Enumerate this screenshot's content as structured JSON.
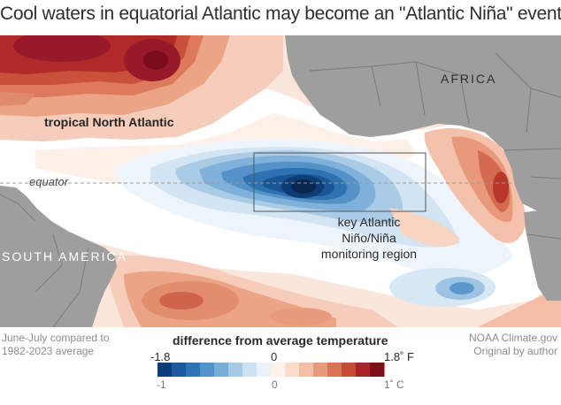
{
  "title": "Cool waters in equatorial Atlantic may become an \"Atlantic Niña\" event",
  "map": {
    "labels": {
      "tropical_north_atlantic": "tropical North Atlantic",
      "equator": "equator",
      "africa": "AFRICA",
      "south_america": "SOUTH AMERICA",
      "region": "key Atlantic Niño/Niña monitoring region"
    },
    "colors": {
      "land": "#9e9e9e",
      "border": "#6f6f6f",
      "ocean_white": "#ffffff",
      "warm_strong": "#a50f15",
      "cool_strong": "#08306b"
    }
  },
  "footer": {
    "left": "June-July compared to 1982-2023 average",
    "right": "NOAA Climate.gov Original by author"
  },
  "legend": {
    "title": "difference from average temperature",
    "f_min": "-1.8",
    "f_mid": "0",
    "f_max": "1.8˚ F",
    "c_min": "-1",
    "c_mid": "0",
    "c_max": "1˚ C",
    "colors": [
      "#0b3d7a",
      "#1b5a9e",
      "#2f74b5",
      "#4f93c9",
      "#76aed8",
      "#a4cae6",
      "#cde1f0",
      "#ebf3f9",
      "#fdf2ec",
      "#f9dccc",
      "#f2bea6",
      "#e89a7c",
      "#dc7254",
      "#c64a36",
      "#a8232a",
      "#7f0d1a"
    ]
  }
}
